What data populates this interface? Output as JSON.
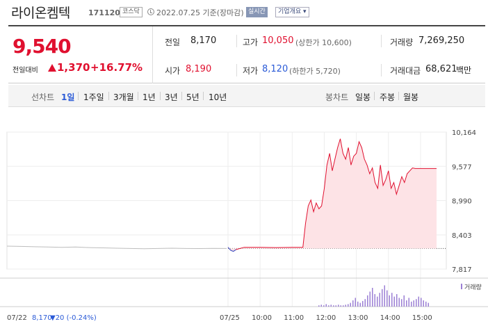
{
  "header": {
    "name": "라이온켐텍",
    "code": "171120",
    "market": "코스닥",
    "date": "2022.07.25 기준(장마감)",
    "realtime": "실시간",
    "company_info": "기업개요 ▾"
  },
  "quote": {
    "price": "9,540",
    "change_label": "전일대비",
    "change": "1,370",
    "rate": "+16.77%",
    "prev_label": "전일",
    "prev": "8,170",
    "high_label": "고가",
    "high": "10,050",
    "upper_limit": "(상한가 10,600)",
    "volume_label": "거래량",
    "volume": "7,269,250",
    "open_label": "시가",
    "open": "8,190",
    "low_label": "저가",
    "low": "8,120",
    "lower_limit": "(하한가 5,720)",
    "amount_label": "거래대금",
    "amount": "68,621",
    "amount_unit": "백만"
  },
  "colors": {
    "up": "#e0102f",
    "down": "#2a5ad7",
    "accent": "#2a5ad7"
  },
  "tabs": {
    "line_label": "선차트",
    "line": [
      "1일",
      "1주일",
      "3개월",
      "1년",
      "3년",
      "5년",
      "10년"
    ],
    "candle_label": "봉차트",
    "candle": [
      "일봉",
      "주봉",
      "월봉"
    ]
  },
  "chart_data": {
    "type": "line",
    "yticks": [
      "10,164",
      "9,577",
      "8,990",
      "8,403",
      "7,817"
    ],
    "ylim": [
      7817,
      10164
    ],
    "xticks": [
      "07/25",
      "10:00",
      "11:00",
      "12:00",
      "13:00",
      "14:00",
      "15:00"
    ],
    "volume_legend": "거래량",
    "prev_day_label": "07/22",
    "prev_day_price": "8,170",
    "prev_day_change": "▼20 (-0.24%)",
    "baseline": 8170,
    "today_series": [
      [
        "09:00",
        8190
      ],
      [
        "09:05",
        8140
      ],
      [
        "09:10",
        8120
      ],
      [
        "09:15",
        8150
      ],
      [
        "09:30",
        8190
      ],
      [
        "10:00",
        8190
      ],
      [
        "10:30",
        8185
      ],
      [
        "11:00",
        8190
      ],
      [
        "11:20",
        8190
      ],
      [
        "11:25",
        8600
      ],
      [
        "11:30",
        8900
      ],
      [
        "11:35",
        9000
      ],
      [
        "11:40",
        8800
      ],
      [
        "11:45",
        8950
      ],
      [
        "11:50",
        8850
      ],
      [
        "11:55",
        8900
      ],
      [
        "12:00",
        9200
      ],
      [
        "12:05",
        9600
      ],
      [
        "12:10",
        9800
      ],
      [
        "12:15",
        9500
      ],
      [
        "12:20",
        9700
      ],
      [
        "12:25",
        9900
      ],
      [
        "12:30",
        10050
      ],
      [
        "12:35",
        9800
      ],
      [
        "12:40",
        9700
      ],
      [
        "12:45",
        9900
      ],
      [
        "12:50",
        9600
      ],
      [
        "12:55",
        9750
      ],
      [
        "13:00",
        9800
      ],
      [
        "13:05",
        10000
      ],
      [
        "13:10",
        9900
      ],
      [
        "13:15",
        9700
      ],
      [
        "13:20",
        9600
      ],
      [
        "13:25",
        9450
      ],
      [
        "13:30",
        9550
      ],
      [
        "13:35",
        9300
      ],
      [
        "13:40",
        9200
      ],
      [
        "13:45",
        9600
      ],
      [
        "13:50",
        9250
      ],
      [
        "13:55",
        9350
      ],
      [
        "14:00",
        9500
      ],
      [
        "14:05",
        9200
      ],
      [
        "14:10",
        9300
      ],
      [
        "14:15",
        9100
      ],
      [
        "14:20",
        9250
      ],
      [
        "14:25",
        9400
      ],
      [
        "14:30",
        9300
      ],
      [
        "14:35",
        9450
      ],
      [
        "14:40",
        9500
      ],
      [
        "14:45",
        9550
      ],
      [
        "14:50",
        9540
      ],
      [
        "15:00",
        9540
      ],
      [
        "15:20",
        9540
      ],
      [
        "15:30",
        9540
      ]
    ],
    "prev_series": [
      8210,
      8205,
      8200,
      8195,
      8190,
      8195,
      8185,
      8180,
      8175,
      8170,
      8165,
      8170,
      8175,
      8170,
      8168,
      8172,
      8170
    ]
  }
}
